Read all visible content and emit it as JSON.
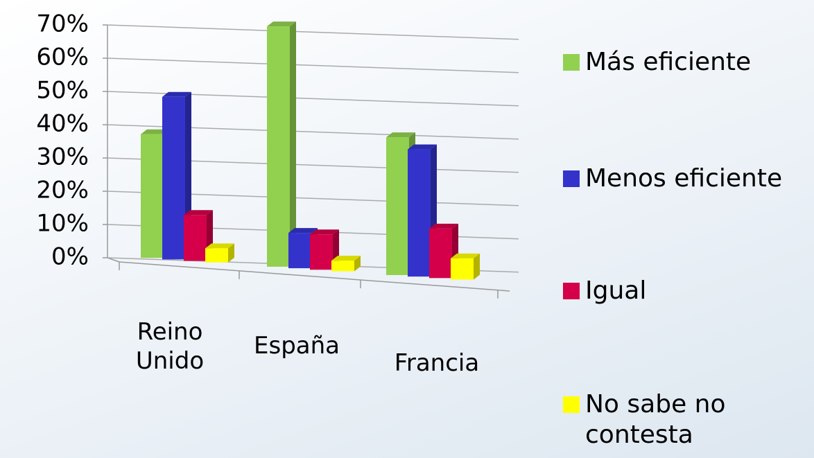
{
  "chart_data": {
    "type": "bar3d",
    "categories": [
      "Reino Unido",
      "España",
      "Francia"
    ],
    "series": [
      {
        "name": "Más eficiente",
        "color": "#92d050",
        "values": [
          35,
          68,
          39
        ]
      },
      {
        "name": "Menos eficiente",
        "color": "#3333cc",
        "values": [
          46,
          10,
          36
        ]
      },
      {
        "name": "Igual",
        "color": "#d40049",
        "values": [
          13,
          10,
          14
        ]
      },
      {
        "name": "No sabe no contesta",
        "color": "#ffff00",
        "values": [
          4,
          3,
          6
        ]
      }
    ],
    "ylim": [
      0,
      70
    ],
    "yticks": [
      {
        "value": 0,
        "label": "0%"
      },
      {
        "value": 10,
        "label": "10%"
      },
      {
        "value": 20,
        "label": "20%"
      },
      {
        "value": 30,
        "label": "30%"
      },
      {
        "value": 40,
        "label": "40%"
      },
      {
        "value": 50,
        "label": "50%"
      },
      {
        "value": 60,
        "label": "60%"
      },
      {
        "value": 70,
        "label": "70%"
      }
    ],
    "grid": true,
    "legend": "right"
  }
}
